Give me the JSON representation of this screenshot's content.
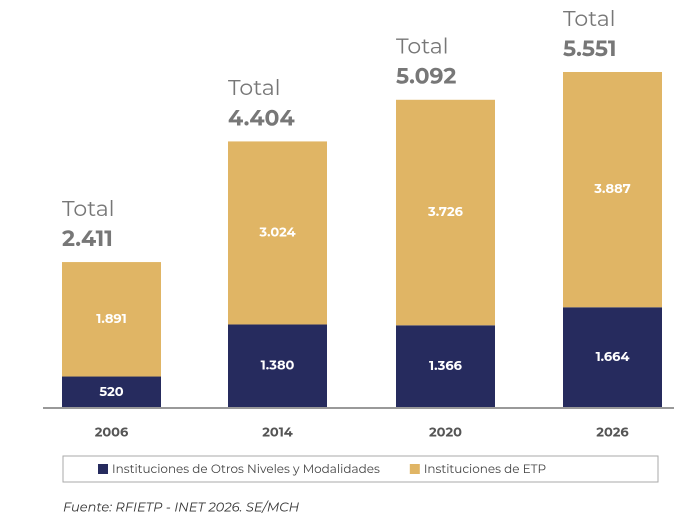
{
  "chart_data": {
    "type": "stacked-bar",
    "categories": [
      "2006",
      "2014",
      "2020",
      "2026"
    ],
    "series": [
      {
        "name": "Instituciones de Otros Niveles y Modalidades",
        "color": "#262b5e",
        "values": [
          520,
          1380,
          1366,
          1664
        ],
        "value_labels": [
          "520",
          "1.380",
          "1.366",
          "1.664"
        ]
      },
      {
        "name": "Instituciones de ETP",
        "color": "#e0b565",
        "values": [
          1891,
          3024,
          3726,
          3887
        ],
        "value_labels": [
          "1.891",
          "3.024",
          "3.726",
          "3.887"
        ]
      }
    ],
    "total_label": "Total",
    "totals": {
      "values": [
        2411,
        4404,
        5092,
        5551
      ],
      "value_labels": [
        "2.411",
        "4.404",
        "5.092",
        "5.551"
      ]
    },
    "ylim": [
      0,
      5551
    ],
    "source": "Fuente: RFIETP - INET 2026. SE/MCH"
  }
}
